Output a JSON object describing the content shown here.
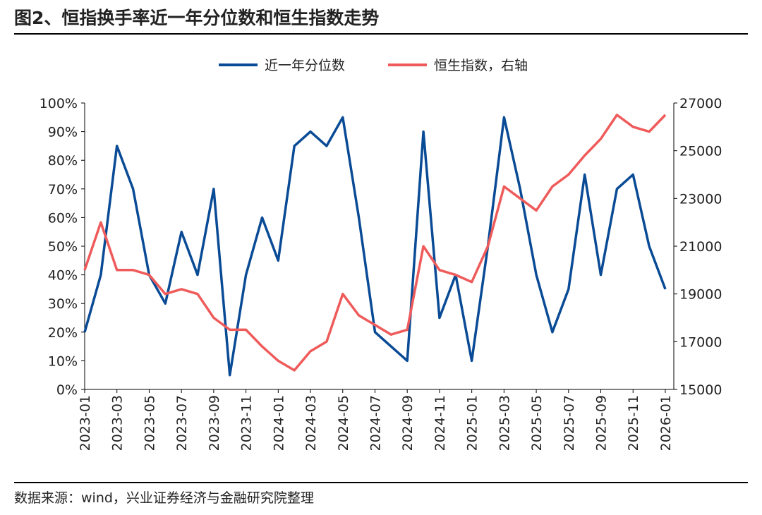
{
  "chart_data": {
    "type": "line",
    "title": "图2、恒指换手率近一年分位数和恒生指数走势",
    "source": "数据来源：wind，兴业证券经济与金融研究院整理",
    "x": [
      "2023-01",
      "2023-02",
      "2023-03",
      "2023-04",
      "2023-05",
      "2023-06",
      "2023-07",
      "2023-08",
      "2023-09",
      "2023-10",
      "2023-11",
      "2023-12",
      "2024-01",
      "2024-02",
      "2024-03",
      "2024-04",
      "2024-05",
      "2024-06",
      "2024-07",
      "2024-08",
      "2024-09",
      "2024-10",
      "2024-11",
      "2024-12",
      "2025-01",
      "2025-02",
      "2025-03",
      "2025-04",
      "2025-05",
      "2025-06",
      "2025-07",
      "2025-08",
      "2025-09",
      "2025-10",
      "2025-11",
      "2025-12",
      "2026-01"
    ],
    "xticks": [
      "2023-01",
      "2023-03",
      "2023-05",
      "2023-07",
      "2023-09",
      "2023-11",
      "2024-01",
      "2024-03",
      "2024-05",
      "2024-07",
      "2024-09",
      "2024-11",
      "2025-01",
      "2025-03",
      "2025-05",
      "2025-07",
      "2025-09",
      "2025-11",
      "2026-01"
    ],
    "series": [
      {
        "name": "近一年分位数",
        "color": "#0a4b96",
        "values": [
          20,
          40,
          85,
          70,
          40,
          30,
          55,
          40,
          70,
          5,
          40,
          60,
          45,
          85,
          90,
          85,
          95,
          60,
          20,
          15,
          10,
          90,
          25,
          40,
          10,
          50,
          95,
          70,
          40,
          20,
          35,
          75,
          40,
          70,
          75,
          50,
          35
        ]
      },
      {
        "name": "恒生指数，右轴",
        "color": "#ef5b5b",
        "axis": "y2",
        "values": [
          20000,
          22000,
          20000,
          20000,
          19800,
          19000,
          19200,
          19000,
          18000,
          17500,
          17500,
          16800,
          16200,
          15800,
          16600,
          17000,
          19000,
          18100,
          17700,
          17300,
          17500,
          21000,
          20000,
          19800,
          19500,
          21000,
          23500,
          23000,
          22500,
          23500,
          24000,
          24800,
          25500,
          26500,
          26000,
          25800,
          26500
        ]
      }
    ],
    "ylim": [
      0,
      100
    ],
    "yticks": [
      {
        "value": 0,
        "label": "0%"
      },
      {
        "value": 10,
        "label": "10%"
      },
      {
        "value": 20,
        "label": "20%"
      },
      {
        "value": 30,
        "label": "30%"
      },
      {
        "value": 40,
        "label": "40%"
      },
      {
        "value": 50,
        "label": "50%"
      },
      {
        "value": 60,
        "label": "60%"
      },
      {
        "value": 70,
        "label": "70%"
      },
      {
        "value": 80,
        "label": "80%"
      },
      {
        "value": 90,
        "label": "90%"
      },
      {
        "value": 100,
        "label": "100%"
      }
    ],
    "y2lim": [
      15000,
      27000
    ],
    "y2ticks": [
      15000,
      17000,
      19000,
      21000,
      23000,
      25000,
      27000
    ]
  }
}
